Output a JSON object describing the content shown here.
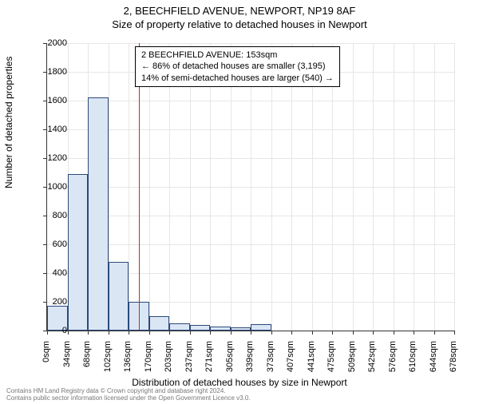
{
  "title_main": "2, BEECHFIELD AVENUE, NEWPORT, NP19 8AF",
  "title_sub": "Size of property relative to detached houses in Newport",
  "chart": {
    "type": "histogram",
    "y_label": "Number of detached properties",
    "x_label": "Distribution of detached houses by size in Newport",
    "y_ticks": [
      0,
      200,
      400,
      600,
      800,
      1000,
      1200,
      1400,
      1600,
      1800,
      2000
    ],
    "y_max": 2000,
    "x_ticks": [
      "0sqm",
      "34sqm",
      "68sqm",
      "102sqm",
      "136sqm",
      "170sqm",
      "203sqm",
      "237sqm",
      "271sqm",
      "305sqm",
      "339sqm",
      "373sqm",
      "407sqm",
      "441sqm",
      "475sqm",
      "509sqm",
      "542sqm",
      "576sqm",
      "610sqm",
      "644sqm",
      "678sqm"
    ],
    "bars": [
      170,
      1090,
      1620,
      480,
      200,
      100,
      50,
      40,
      30,
      25,
      45,
      0,
      0,
      0,
      0,
      0,
      0,
      0,
      0,
      0
    ],
    "bar_fill": "#dbe6f5",
    "bar_stroke": "#2b4a7a",
    "grid_color": "#e6e6e6",
    "background": "#ffffff",
    "ref_line": {
      "value_sqm": 153,
      "color": "#d62020"
    },
    "annotation": {
      "line1": "2 BEECHFIELD AVENUE: 153sqm",
      "line2": "← 86% of detached houses are smaller (3,195)",
      "line3": "14% of semi-detached houses are larger (540) →"
    }
  },
  "footer": {
    "line1": "Contains HM Land Registry data © Crown copyright and database right 2024.",
    "line2": "Contains public sector information licensed under the Open Government Licence v3.0."
  }
}
